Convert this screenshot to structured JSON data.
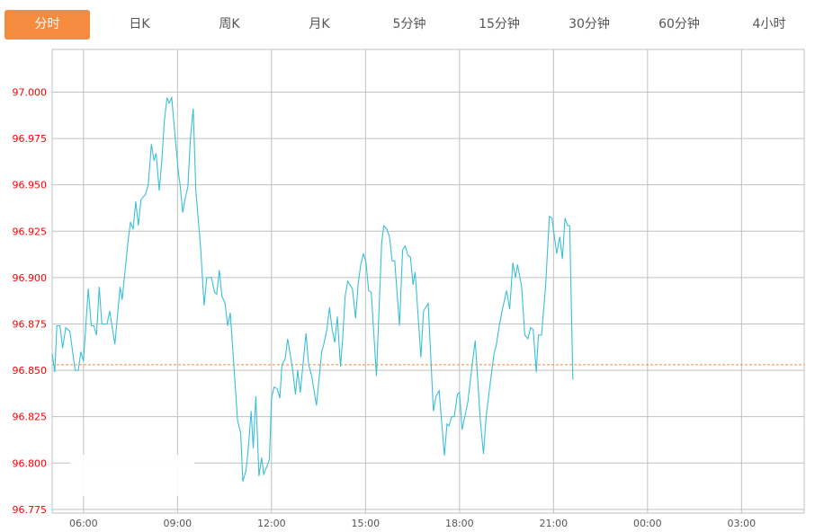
{
  "tabs": [
    {
      "label": "分时",
      "active": true
    },
    {
      "label": "日K",
      "active": false
    },
    {
      "label": "周K",
      "active": false
    },
    {
      "label": "月K",
      "active": false
    },
    {
      "label": "5分钟",
      "active": false
    },
    {
      "label": "15分钟",
      "active": false
    },
    {
      "label": "30分钟",
      "active": false
    },
    {
      "label": "60分钟",
      "active": false
    },
    {
      "label": "4小时",
      "active": false
    }
  ],
  "colors": {
    "accent": "#f48b3e",
    "line": "#3bbfd8",
    "ytick": "#ff0000",
    "reference": "#f48b3e",
    "grid": "#c0c0c0"
  },
  "chart_data": {
    "type": "line",
    "xlim": [
      "05:00",
      "05:00 (+1 day)"
    ],
    "ylim": [
      96.773,
      97.023
    ],
    "grid": true,
    "x_ticks": [
      "06:00",
      "09:00",
      "12:00",
      "15:00",
      "18:00",
      "21:00",
      "00:00",
      "03:00"
    ],
    "y_ticks": [
      "96.775",
      "96.800",
      "96.825",
      "96.850",
      "96.875",
      "96.900",
      "96.925",
      "96.950",
      "96.975",
      "97.000"
    ],
    "reference_line": 96.853,
    "series": [
      {
        "x": [
          "05:00",
          "05:05",
          "05:09",
          "05:15",
          "05:20",
          "05:26",
          "05:34",
          "05:44",
          "05:50",
          "05:55",
          "06:00",
          "06:09",
          "06:15",
          "06:20",
          "06:25",
          "06:30",
          "06:35",
          "06:45",
          "06:50",
          "07:00",
          "07:10",
          "07:14",
          "07:25",
          "07:30",
          "07:35",
          "07:40",
          "07:45",
          "07:50",
          "07:59",
          "08:04",
          "08:10",
          "08:15",
          "08:19",
          "08:25",
          "08:30",
          "08:35",
          "08:40",
          "08:44",
          "08:49",
          "08:56",
          "09:02",
          "09:05",
          "09:10",
          "09:15",
          "09:20",
          "09:25",
          "09:30",
          "09:35",
          "09:44",
          "09:51",
          "09:56",
          "10:05",
          "10:11",
          "10:15",
          "10:20",
          "10:25",
          "10:31",
          "10:36",
          "10:41",
          "10:55",
          "11:01",
          "11:05",
          "11:11",
          "11:15",
          "11:21",
          "11:25",
          "11:30",
          "11:36",
          "11:41",
          "11:45",
          "11:51",
          "11:56",
          "12:00",
          "12:05",
          "12:11",
          "12:16",
          "12:20",
          "12:26",
          "12:31",
          "12:40",
          "12:46",
          "12:50",
          "12:55",
          "13:06",
          "13:11",
          "13:17",
          "13:26",
          "13:36",
          "13:40",
          "13:46",
          "13:51",
          "13:56",
          "14:01",
          "14:06",
          "14:12",
          "14:16",
          "14:21",
          "14:26",
          "14:35",
          "14:41",
          "14:46",
          "14:51",
          "14:56",
          "15:01",
          "15:06",
          "15:11",
          "15:21",
          "15:31",
          "15:35",
          "15:41",
          "15:46",
          "15:51",
          "15:56",
          "16:05",
          "16:11",
          "16:16",
          "16:21",
          "16:26",
          "16:31",
          "16:35",
          "16:46",
          "16:51",
          "17:00",
          "17:10",
          "17:15",
          "17:21",
          "17:31",
          "17:36",
          "17:40",
          "17:45",
          "17:50",
          "17:56",
          "18:00",
          "18:05",
          "18:16",
          "18:26",
          "18:30",
          "18:40",
          "18:46",
          "18:51",
          "19:01",
          "19:06",
          "19:10",
          "19:16",
          "19:23",
          "19:30",
          "19:36",
          "19:42",
          "19:47",
          "19:51",
          "19:59",
          "20:05",
          "20:11",
          "20:16",
          "20:21",
          "20:27",
          "20:31",
          "20:37",
          "20:45",
          "20:52",
          "20:57",
          "21:06",
          "21:12",
          "21:17",
          "21:22",
          "21:27",
          "21:31",
          "21:37"
        ],
        "values": [
          96.859,
          96.849,
          96.874,
          96.874,
          96.862,
          96.873,
          96.871,
          96.85,
          96.85,
          96.86,
          96.855,
          96.894,
          96.874,
          96.874,
          96.869,
          96.895,
          96.875,
          96.875,
          96.882,
          96.864,
          96.895,
          96.888,
          96.919,
          96.93,
          96.926,
          96.941,
          96.928,
          96.942,
          96.945,
          96.95,
          96.972,
          96.963,
          96.967,
          96.947,
          96.963,
          96.985,
          96.997,
          96.994,
          96.997,
          96.974,
          96.956,
          96.95,
          96.935,
          96.943,
          96.949,
          96.976,
          96.991,
          96.947,
          96.917,
          96.885,
          96.9,
          96.9,
          96.892,
          96.891,
          96.904,
          96.89,
          96.886,
          96.874,
          96.881,
          96.823,
          96.816,
          96.79,
          96.796,
          96.806,
          96.828,
          96.808,
          96.836,
          96.793,
          96.803,
          96.794,
          96.798,
          96.802,
          96.835,
          96.841,
          96.84,
          96.835,
          96.853,
          96.856,
          96.867,
          96.851,
          96.837,
          96.85,
          96.838,
          96.87,
          96.853,
          96.847,
          96.831,
          96.86,
          96.864,
          96.872,
          96.884,
          96.872,
          96.865,
          96.879,
          96.852,
          96.866,
          96.89,
          96.898,
          96.894,
          96.878,
          96.897,
          96.907,
          96.913,
          96.908,
          96.893,
          96.892,
          96.847,
          96.919,
          96.928,
          96.926,
          96.922,
          96.909,
          96.909,
          96.874,
          96.915,
          96.917,
          96.912,
          96.911,
          96.896,
          96.903,
          96.857,
          96.882,
          96.886,
          96.828,
          96.836,
          96.839,
          96.804,
          96.821,
          96.82,
          96.825,
          96.825,
          96.837,
          96.838,
          96.818,
          96.833,
          96.857,
          96.866,
          96.822,
          96.805,
          96.825,
          96.848,
          96.859,
          96.863,
          96.874,
          96.884,
          96.893,
          96.883,
          96.908,
          96.9,
          96.907,
          96.895,
          96.869,
          96.867,
          96.873,
          96.872,
          96.849,
          96.869,
          96.869,
          96.896,
          96.933,
          96.932,
          96.913,
          96.922,
          96.91,
          96.932,
          96.928,
          96.928,
          96.845
        ]
      }
    ]
  }
}
